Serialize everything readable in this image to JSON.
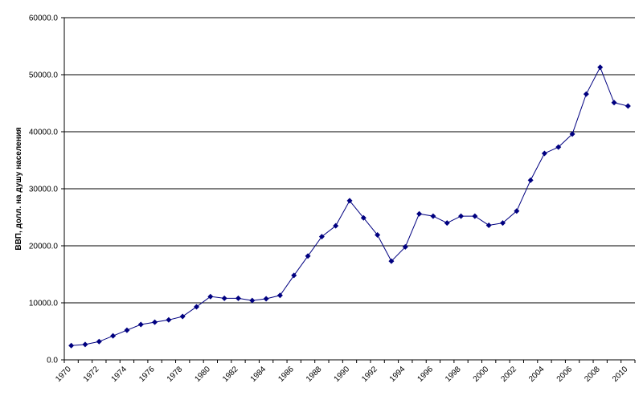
{
  "chart_data": {
    "type": "line",
    "y_label": "ВВП, долл. на душу населения",
    "categories": [
      "1970",
      null,
      "1972",
      null,
      "1974",
      null,
      "1976",
      null,
      "1978",
      null,
      "1980",
      null,
      "1982",
      null,
      "1984",
      null,
      "1986",
      null,
      "1988",
      null,
      "1990",
      null,
      "1992",
      null,
      "1994",
      null,
      "1996",
      null,
      "1998",
      null,
      "2000",
      null,
      "2002",
      null,
      "2004",
      null,
      "2006",
      null,
      "2008",
      null,
      "2010"
    ],
    "values": [
      2500,
      2700,
      3200,
      4200,
      5200,
      6200,
      6600,
      7000,
      7600,
      9300,
      11100,
      10800,
      10800,
      10400,
      10700,
      11300,
      14800,
      18200,
      21600,
      23500,
      27900,
      24900,
      21900,
      17300,
      19800,
      25600,
      25200,
      24000,
      25200,
      25200,
      23600,
      24000,
      26100,
      31500,
      36200,
      37300,
      39600,
      46600,
      51300,
      45100,
      44500
    ],
    "color": "#000080",
    "ylim": [
      0,
      60000
    ],
    "yticks": [
      {
        "value": 0,
        "label": "0.0"
      },
      {
        "value": 10000,
        "label": "10000.0"
      },
      {
        "value": 20000,
        "label": "20000.0"
      },
      {
        "value": 30000,
        "label": "30000.0"
      },
      {
        "value": 40000,
        "label": "40000.0"
      },
      {
        "value": 50000,
        "label": "50000.0"
      },
      {
        "value": 60000,
        "label": "60000.0"
      }
    ],
    "grid": true
  }
}
